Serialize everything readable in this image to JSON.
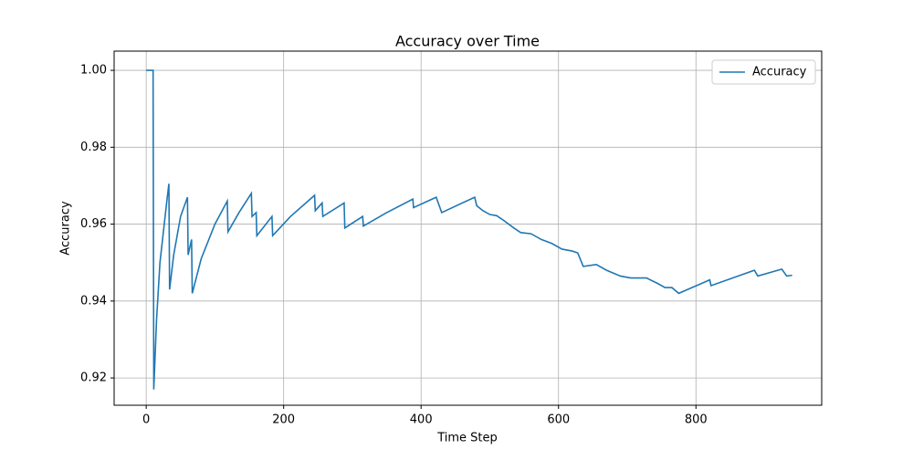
{
  "chart_data": {
    "type": "line",
    "title": "Accuracy over Time",
    "x_label": "Time Step",
    "y_label": "Accuracy",
    "xlim": [
      -46.7,
      983
    ],
    "ylim": [
      0.9129,
      1.005
    ],
    "xticks": [
      0,
      200,
      400,
      600,
      800
    ],
    "yticks": [
      0.92,
      0.94,
      0.96,
      0.98,
      {
        "value": 1,
        "label": "1.00"
      }
    ],
    "grid": true,
    "legend": "upper right",
    "x": [
      0,
      10,
      11,
      15,
      20,
      25,
      30,
      33,
      34,
      40,
      50,
      60,
      61,
      66,
      67,
      80,
      100,
      118,
      119,
      135,
      153,
      154,
      160,
      161,
      183,
      184,
      210,
      245,
      246,
      256,
      257,
      288,
      289,
      315,
      316,
      350,
      388,
      389,
      422,
      426,
      430,
      478,
      481,
      490,
      500,
      510,
      520,
      535,
      545,
      560,
      575,
      590,
      605,
      620,
      628,
      636,
      655,
      670,
      690,
      705,
      728,
      745,
      755,
      765,
      775,
      820,
      822,
      885,
      890,
      925,
      932,
      940
    ],
    "series": [
      {
        "name": "Accuracy",
        "color": "#1f77b4",
        "values": [
          1.0,
          1.0,
          0.917,
          0.935,
          0.95,
          0.958,
          0.966,
          0.9705,
          0.943,
          0.952,
          0.962,
          0.967,
          0.952,
          0.956,
          0.942,
          0.951,
          0.96,
          0.966,
          0.958,
          0.963,
          0.968,
          0.962,
          0.963,
          0.957,
          0.962,
          0.957,
          0.962,
          0.9675,
          0.9635,
          0.9655,
          0.962,
          0.9655,
          0.959,
          0.962,
          0.9595,
          0.963,
          0.9665,
          0.9643,
          0.967,
          0.965,
          0.963,
          0.967,
          0.9648,
          0.9635,
          0.9625,
          0.9622,
          0.961,
          0.959,
          0.9578,
          0.9575,
          0.956,
          0.955,
          0.9535,
          0.953,
          0.9525,
          0.949,
          0.9495,
          0.948,
          0.9465,
          0.946,
          0.946,
          0.9445,
          0.9435,
          0.9435,
          0.942,
          0.9455,
          0.944,
          0.948,
          0.9465,
          0.9483,
          0.9465,
          0.9467
        ]
      }
    ]
  }
}
